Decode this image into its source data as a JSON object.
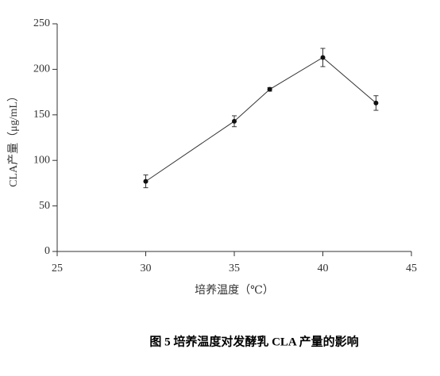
{
  "chart_data": {
    "type": "line",
    "caption": "图 5 培养温度对发酵乳 CLA 产量的影响",
    "xlabel": "培养温度（℃）",
    "ylabel": "CLA产量（μg/mL）",
    "x": [
      30,
      35,
      37,
      40,
      43
    ],
    "series": [
      {
        "color": "#333333",
        "values": [
          77,
          143,
          178,
          213,
          163
        ],
        "errors": [
          7,
          6,
          2,
          10,
          8
        ]
      }
    ],
    "xlim": [
      25,
      45
    ],
    "xticks": [
      25,
      30,
      35,
      40,
      45
    ],
    "ylim": [
      0,
      250
    ],
    "yticks": [
      0,
      50,
      100,
      150,
      200,
      250
    ]
  }
}
